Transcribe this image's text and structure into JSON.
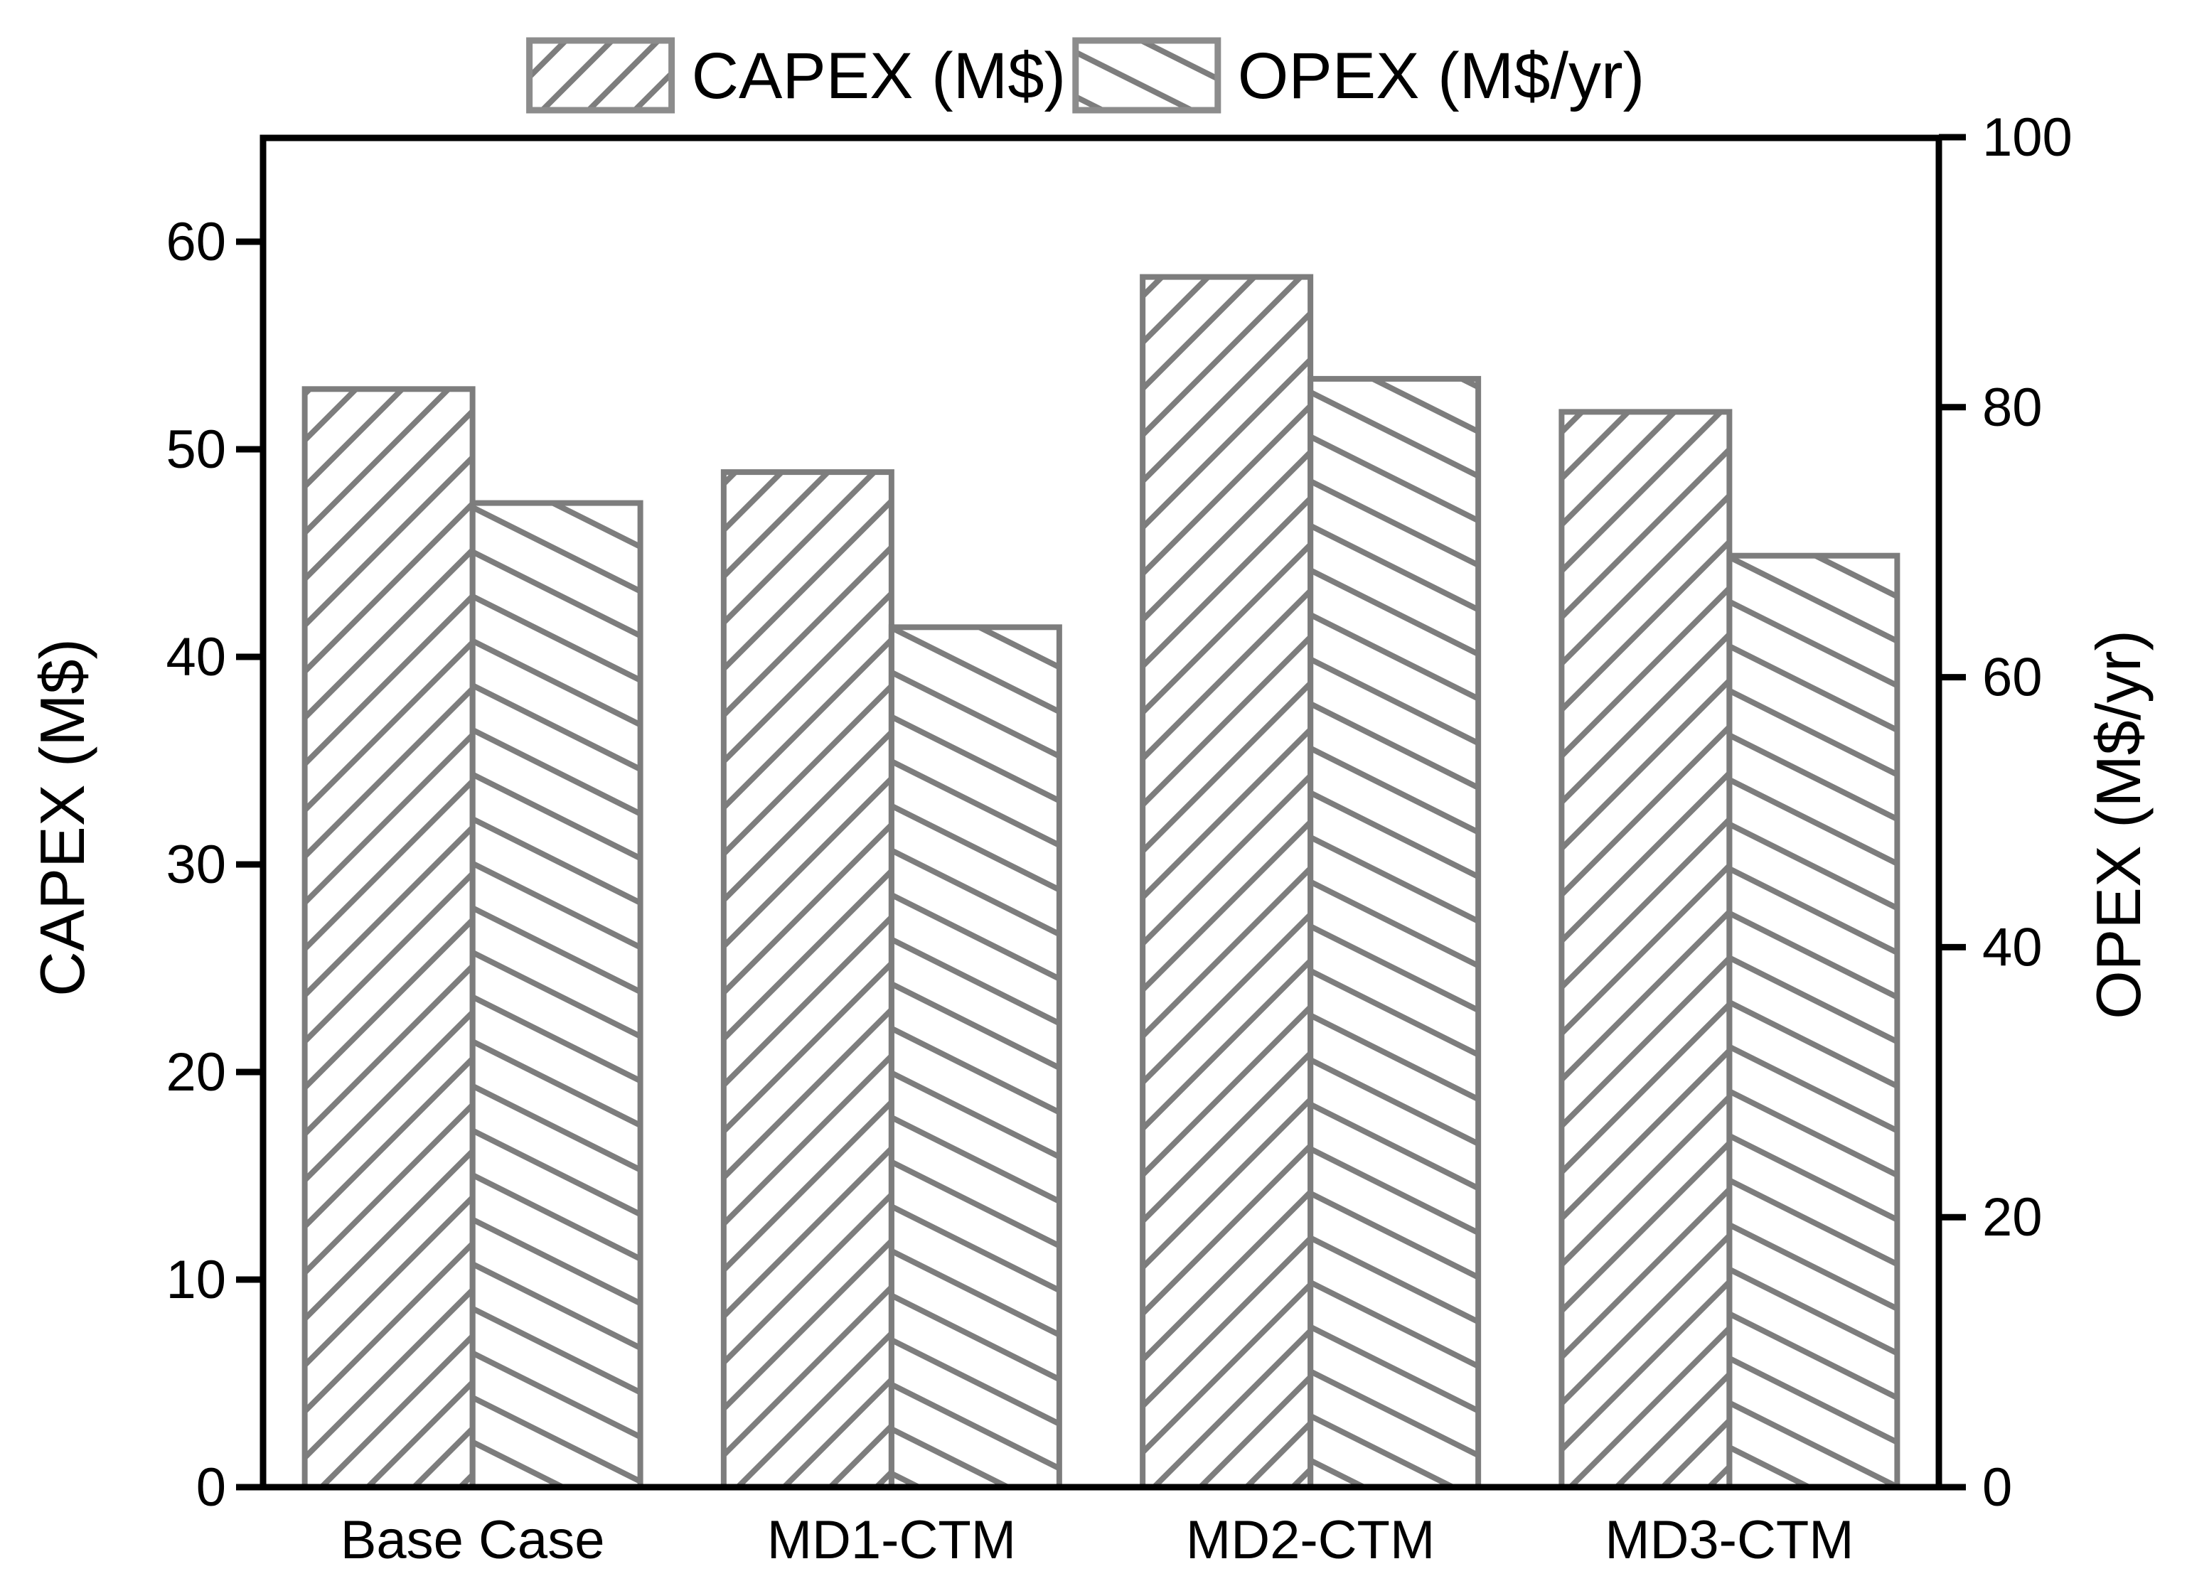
{
  "chart_data": {
    "type": "bar",
    "title": "",
    "categories": [
      "Base Case",
      "MD1-CTM",
      "MD2-CTM",
      "MD3-CTM"
    ],
    "series": [
      {
        "name": "CAPEX (M$)",
        "axis": "left",
        "hatch": "forward-diagonal",
        "values": [
          52.9,
          48.9,
          58.3,
          51.8
        ]
      },
      {
        "name": "OPEX (M$/yr)",
        "axis": "right",
        "hatch": "backward-diagonal",
        "values": [
          72.9,
          63.7,
          82.1,
          69.0
        ]
      }
    ],
    "left_axis": {
      "label": "CAPEX (M$)",
      "ticks": [
        0,
        10,
        20,
        30,
        40,
        50,
        60
      ],
      "range": [
        0,
        65
      ]
    },
    "right_axis": {
      "label": "OPEX (M$/yr)",
      "ticks": [
        0,
        20,
        40,
        60,
        80,
        100
      ],
      "range": [
        0,
        100
      ]
    },
    "legend_position": "top-center",
    "grid": false,
    "colors": {
      "hatch": "#7d7d7d",
      "axis": "#000000",
      "text": "#000000",
      "background": "#ffffff"
    }
  }
}
